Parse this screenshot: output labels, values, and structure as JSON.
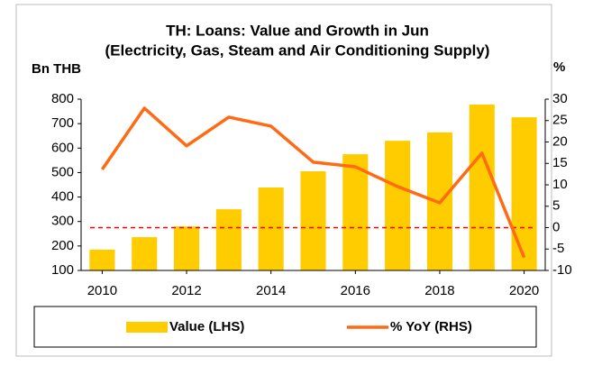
{
  "chart_data": {
    "type": "bar_line",
    "title": [
      "TH: Loans: Value and Growth in Jun",
      "(Electricity, Gas, Steam and Air Conditioning Supply)"
    ],
    "ylabel": "Bn THB",
    "y2label": "%",
    "x": [
      2010,
      2011,
      2012,
      2013,
      2014,
      2015,
      2016,
      2017,
      2018,
      2019,
      2020
    ],
    "xlim": [
      2009.5,
      2020.5
    ],
    "xticks": [
      2010,
      2012,
      2014,
      2016,
      2018,
      2020
    ],
    "ylim": [
      100,
      800
    ],
    "yticks": [
      100,
      200,
      300,
      400,
      500,
      600,
      700,
      800
    ],
    "y2lim": [
      -10,
      30
    ],
    "y2ticks": [
      -10,
      -5,
      0,
      5,
      10,
      15,
      20,
      25,
      30
    ],
    "y2_zero_line": true,
    "zero_line_color": "#ff0000",
    "series": [
      {
        "name": "Value (LHS)",
        "kind": "bar",
        "color": "#ffcc00",
        "values": [
          185,
          236,
          280,
          350,
          439,
          505,
          575,
          630,
          664,
          778,
          726
        ]
      },
      {
        "name": "% YoY (RHS)",
        "kind": "line",
        "axis": "y2",
        "color": "#ff6a13",
        "values": [
          13.6,
          27.9,
          19.1,
          25.8,
          23.7,
          15.3,
          14.2,
          9.6,
          5.8,
          17.4,
          -7.0
        ]
      }
    ]
  }
}
